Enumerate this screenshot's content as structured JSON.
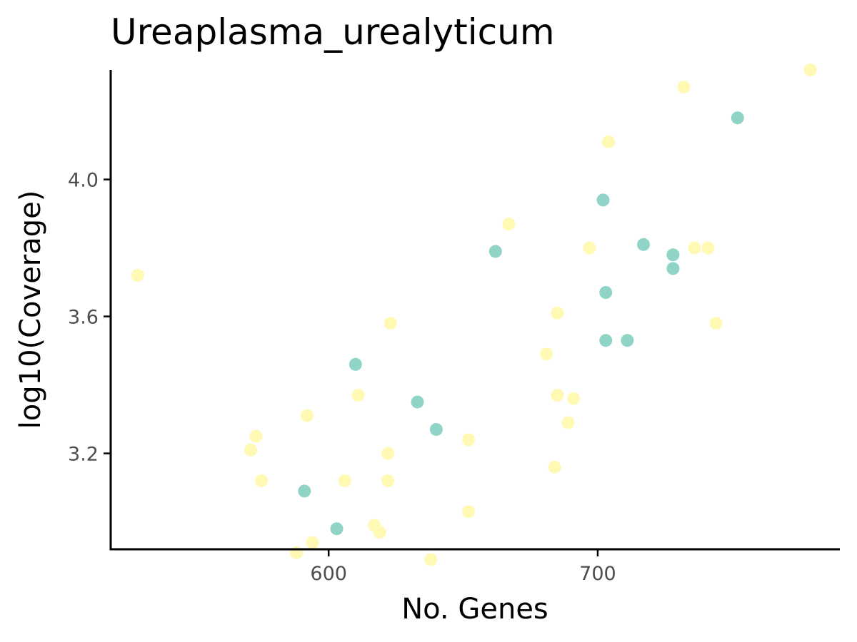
{
  "chart_data": {
    "type": "scatter",
    "title": "Ureaplasma_urealyticum",
    "xlabel": "No. Genes",
    "ylabel": "log10(Coverage)",
    "xlim": [
      519,
      790
    ],
    "ylim": [
      2.92,
      4.32
    ],
    "xticks": [
      600,
      700
    ],
    "yticks": [
      3.2,
      3.6,
      4.0
    ],
    "xtick_labels": [
      "600",
      "700"
    ],
    "ytick_labels": [
      "3.2",
      "3.6",
      "4.0"
    ],
    "grid": false,
    "legend": "none",
    "colors": {
      "teal": "#8fd4c6",
      "yellow": "#fff9b3"
    },
    "series": [
      {
        "color": "#8fd4c6",
        "points": [
          [
            591,
            3.09
          ],
          [
            610,
            3.46
          ],
          [
            603,
            2.98
          ],
          [
            633,
            3.35
          ],
          [
            640,
            3.27
          ],
          [
            662,
            3.79
          ],
          [
            702,
            3.94
          ],
          [
            703,
            3.67
          ],
          [
            703,
            3.53
          ],
          [
            711,
            3.53
          ],
          [
            717,
            3.81
          ],
          [
            728,
            3.78
          ],
          [
            728,
            3.74
          ],
          [
            752,
            4.18
          ]
        ]
      },
      {
        "color": "#fff9b3",
        "points": [
          [
            529,
            3.72
          ],
          [
            571,
            3.21
          ],
          [
            573,
            3.25
          ],
          [
            575,
            3.12
          ],
          [
            588,
            2.91
          ],
          [
            592,
            3.31
          ],
          [
            594,
            2.94
          ],
          [
            606,
            3.12
          ],
          [
            611,
            3.37
          ],
          [
            617,
            2.99
          ],
          [
            619,
            2.97
          ],
          [
            622,
            3.2
          ],
          [
            622,
            3.12
          ],
          [
            623,
            3.58
          ],
          [
            638,
            2.89
          ],
          [
            652,
            3.24
          ],
          [
            652,
            3.03
          ],
          [
            667,
            3.87
          ],
          [
            681,
            3.49
          ],
          [
            684,
            3.16
          ],
          [
            685,
            3.61
          ],
          [
            685,
            3.37
          ],
          [
            689,
            3.29
          ],
          [
            691,
            3.36
          ],
          [
            697,
            3.8
          ],
          [
            704,
            4.11
          ],
          [
            732,
            4.27
          ],
          [
            736,
            3.8
          ],
          [
            741,
            3.8
          ],
          [
            744,
            3.58
          ],
          [
            779,
            4.32
          ]
        ]
      }
    ]
  }
}
